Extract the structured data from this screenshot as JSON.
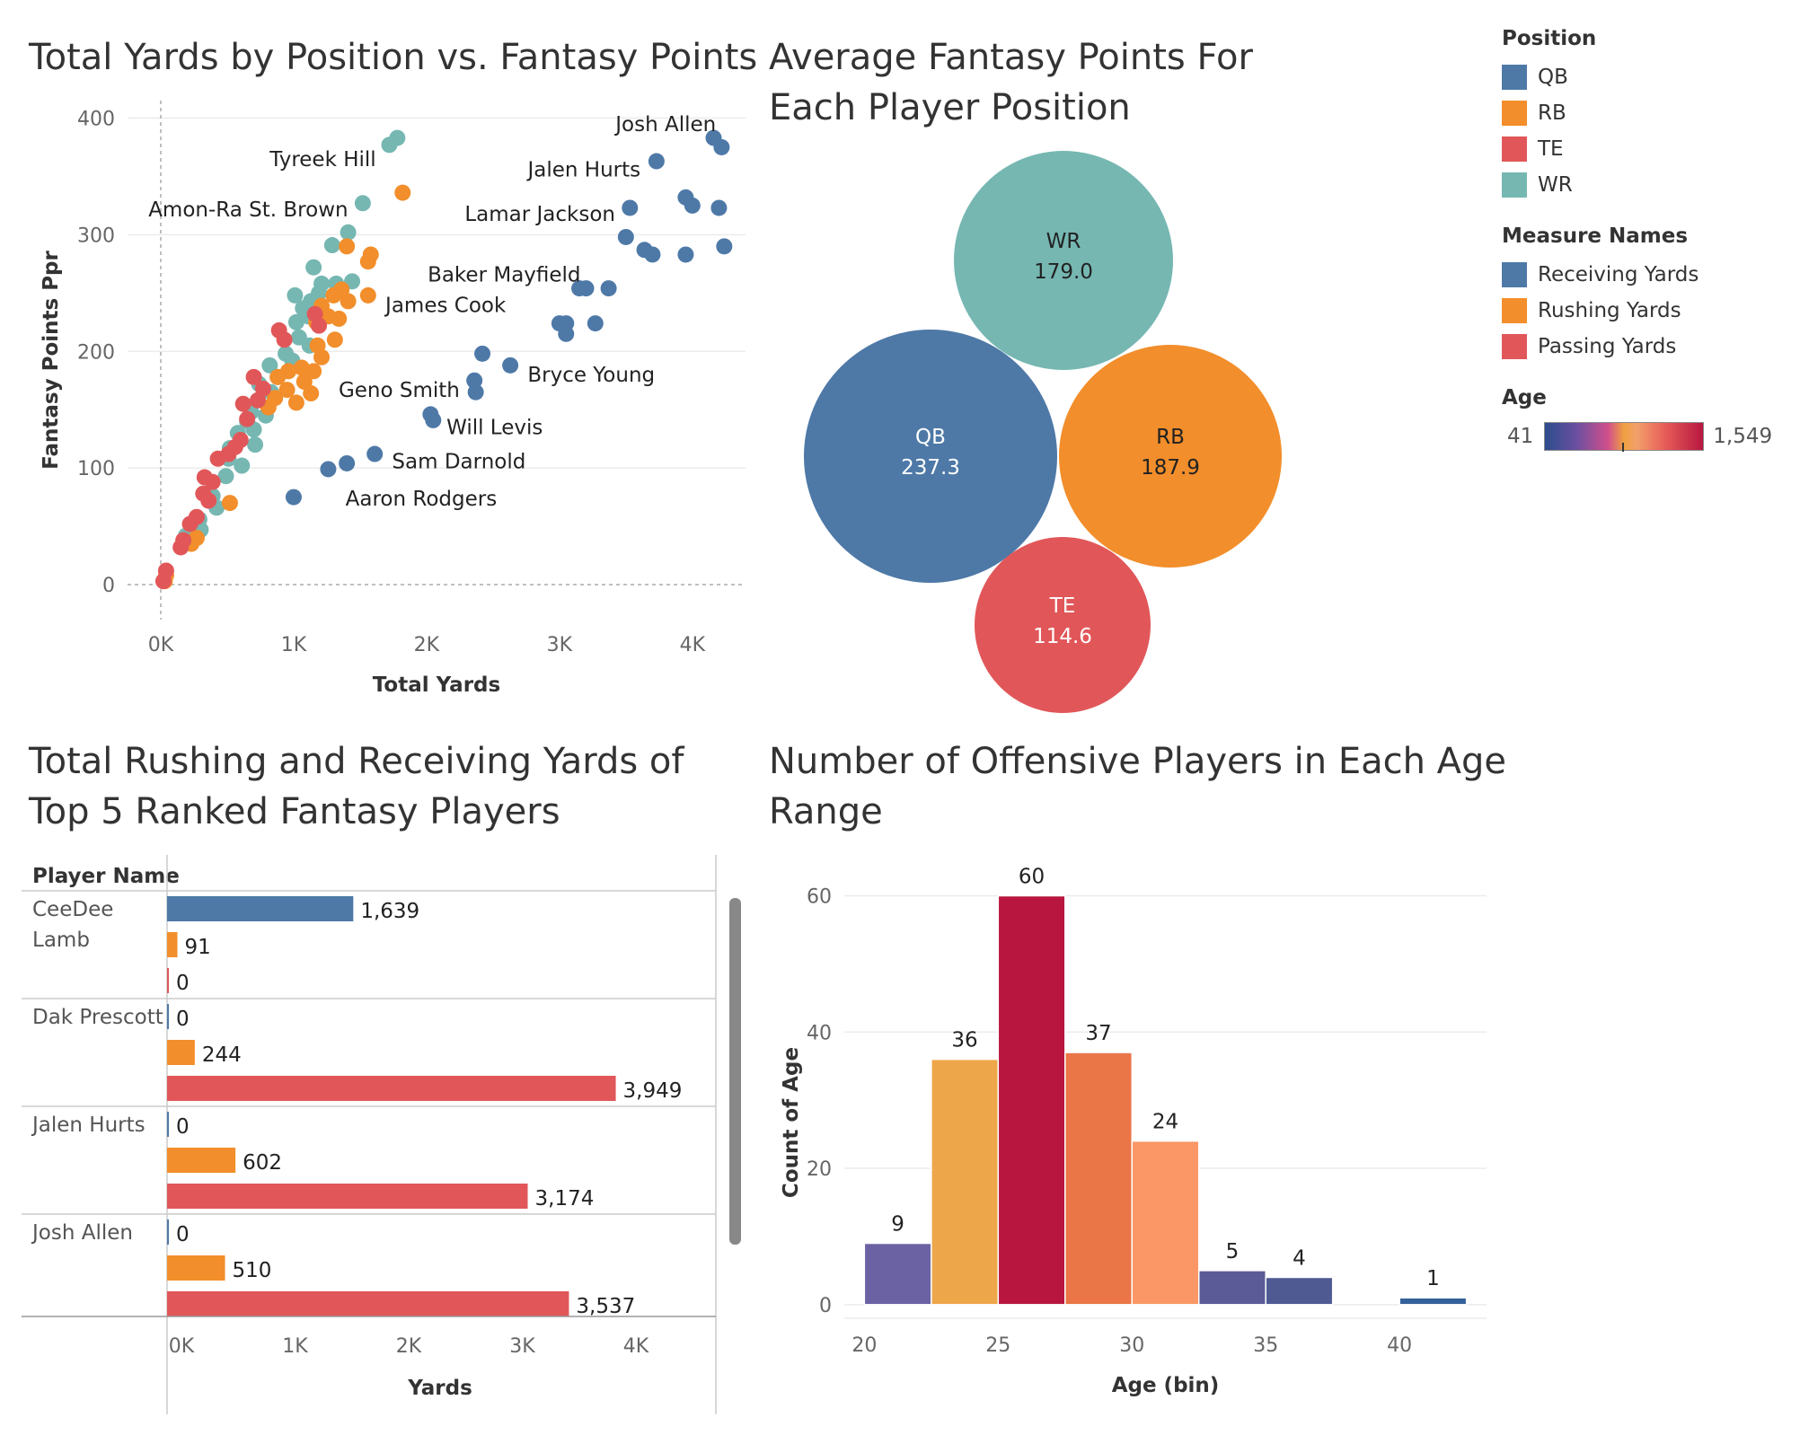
{
  "colors": {
    "qb": "#4e79a7",
    "rb": "#f28e2b",
    "te": "#e15759",
    "wr": "#76b7b2",
    "receiving": "#4e79a7",
    "rushing": "#f28e2b",
    "passing": "#e15759",
    "grid": "#ececec",
    "text": "#333333"
  },
  "legend": {
    "position_title": "Position",
    "positions": [
      {
        "label": "QB",
        "color": "#4e79a7"
      },
      {
        "label": "RB",
        "color": "#f28e2b"
      },
      {
        "label": "TE",
        "color": "#e15759"
      },
      {
        "label": "WR",
        "color": "#76b7b2"
      }
    ],
    "measure_title": "Measure Names",
    "measures": [
      {
        "label": "Receiving Yards",
        "color": "#4e79a7"
      },
      {
        "label": "Rushing Yards",
        "color": "#f28e2b"
      },
      {
        "label": "Passing Yards",
        "color": "#e15759"
      }
    ],
    "age_title": "Age",
    "age_min": "41",
    "age_max": "1,549"
  },
  "chart_data": [
    {
      "type": "scatter",
      "title": "Total Yards by Position vs. Fantasy Points",
      "xlabel": "Total Yards",
      "ylabel": "Fantasy Points Ppr",
      "xlim": [
        -250,
        4400
      ],
      "ylim": [
        -30,
        415
      ],
      "x_ticks": [
        {
          "v": 0,
          "label": "0K"
        },
        {
          "v": 1000,
          "label": "1K"
        },
        {
          "v": 2000,
          "label": "2K"
        },
        {
          "v": 3000,
          "label": "3K"
        },
        {
          "v": 4000,
          "label": "4K"
        }
      ],
      "y_ticks": [
        0,
        100,
        200,
        300,
        400
      ],
      "points": {
        "QB": [
          [
            4160,
            383
          ],
          [
            4220,
            375
          ],
          [
            3730,
            363
          ],
          [
            3950,
            332
          ],
          [
            4000,
            325
          ],
          [
            4200,
            323
          ],
          [
            3530,
            323
          ],
          [
            3500,
            298
          ],
          [
            3640,
            287
          ],
          [
            3700,
            283
          ],
          [
            3950,
            283
          ],
          [
            4240,
            290
          ],
          [
            3150,
            254
          ],
          [
            3200,
            254
          ],
          [
            3370,
            254
          ],
          [
            3000,
            224
          ],
          [
            3050,
            224
          ],
          [
            3270,
            224
          ],
          [
            3050,
            215
          ],
          [
            2420,
            198
          ],
          [
            2630,
            188
          ],
          [
            2360,
            175
          ],
          [
            2370,
            165
          ],
          [
            2030,
            146
          ],
          [
            2050,
            141
          ],
          [
            1610,
            112
          ],
          [
            1400,
            104
          ],
          [
            1260,
            99
          ],
          [
            1000,
            75
          ]
        ],
        "RB": [
          [
            1820,
            336
          ],
          [
            1580,
            283
          ],
          [
            1560,
            277
          ],
          [
            1400,
            290
          ],
          [
            1560,
            248
          ],
          [
            1360,
            253
          ],
          [
            1410,
            243
          ],
          [
            1300,
            248
          ],
          [
            1210,
            239
          ],
          [
            1340,
            228
          ],
          [
            1260,
            230
          ],
          [
            1170,
            225
          ],
          [
            1310,
            210
          ],
          [
            1180,
            205
          ],
          [
            1210,
            195
          ],
          [
            1060,
            186
          ],
          [
            1150,
            183
          ],
          [
            960,
            183
          ],
          [
            880,
            178
          ],
          [
            1080,
            174
          ],
          [
            950,
            167
          ],
          [
            1130,
            164
          ],
          [
            860,
            160
          ],
          [
            1020,
            156
          ],
          [
            810,
            152
          ],
          [
            520,
            70
          ],
          [
            270,
            40
          ],
          [
            230,
            35
          ],
          [
            40,
            8
          ],
          [
            30,
            3
          ]
        ],
        "TE": [
          [
            890,
            218
          ],
          [
            930,
            210
          ],
          [
            1160,
            232
          ],
          [
            1190,
            222
          ],
          [
            700,
            178
          ],
          [
            770,
            168
          ],
          [
            730,
            158
          ],
          [
            620,
            155
          ],
          [
            650,
            142
          ],
          [
            600,
            124
          ],
          [
            560,
            118
          ],
          [
            510,
            112
          ],
          [
            430,
            108
          ],
          [
            330,
            92
          ],
          [
            390,
            88
          ],
          [
            320,
            78
          ],
          [
            360,
            72
          ],
          [
            270,
            58
          ],
          [
            220,
            52
          ],
          [
            170,
            38
          ],
          [
            150,
            32
          ],
          [
            40,
            12
          ],
          [
            20,
            3
          ]
        ],
        "WR": [
          [
            1780,
            383
          ],
          [
            1720,
            377
          ],
          [
            1520,
            327
          ],
          [
            1410,
            302
          ],
          [
            1290,
            291
          ],
          [
            1150,
            272
          ],
          [
            1440,
            260
          ],
          [
            1320,
            258
          ],
          [
            1210,
            258
          ],
          [
            1010,
            248
          ],
          [
            1190,
            250
          ],
          [
            1130,
            243
          ],
          [
            1070,
            237
          ],
          [
            1110,
            230
          ],
          [
            1020,
            225
          ],
          [
            1040,
            212
          ],
          [
            1120,
            205
          ],
          [
            940,
            198
          ],
          [
            990,
            192
          ],
          [
            820,
            188
          ],
          [
            880,
            178
          ],
          [
            740,
            172
          ],
          [
            830,
            165
          ],
          [
            730,
            158
          ],
          [
            680,
            148
          ],
          [
            790,
            145
          ],
          [
            650,
            140
          ],
          [
            700,
            133
          ],
          [
            580,
            130
          ],
          [
            710,
            120
          ],
          [
            520,
            117
          ],
          [
            610,
            102
          ],
          [
            490,
            93
          ],
          [
            510,
            108
          ],
          [
            390,
            76
          ],
          [
            420,
            66
          ],
          [
            290,
            56
          ],
          [
            300,
            47
          ],
          [
            190,
            42
          ]
        ]
      },
      "annotations": [
        {
          "text": "Josh Allen",
          "x": 3800,
          "y": 395,
          "anchor": "middle"
        },
        {
          "text": "Tyreek Hill",
          "x": 1620,
          "y": 365,
          "anchor": "end"
        },
        {
          "text": "Jalen Hurts",
          "x": 3610,
          "y": 356,
          "anchor": "end"
        },
        {
          "text": "Amon-Ra St. Brown",
          "x": 1410,
          "y": 322,
          "anchor": "end"
        },
        {
          "text": "Lamar Jackson",
          "x": 3420,
          "y": 318,
          "anchor": "end"
        },
        {
          "text": "Baker Mayfield",
          "x": 3160,
          "y": 266,
          "anchor": "end"
        },
        {
          "text": "James Cook",
          "x": 1690,
          "y": 240,
          "anchor": "start"
        },
        {
          "text": "Bryce Young",
          "x": 2760,
          "y": 180,
          "anchor": "start"
        },
        {
          "text": "Geno Smith",
          "x": 2250,
          "y": 167,
          "anchor": "end"
        },
        {
          "text": "Will Levis",
          "x": 2150,
          "y": 135,
          "anchor": "start"
        },
        {
          "text": "Sam Darnold",
          "x": 1740,
          "y": 106,
          "anchor": "start"
        },
        {
          "text": "Aaron Rodgers",
          "x": 1390,
          "y": 74,
          "anchor": "start"
        }
      ]
    },
    {
      "type": "bubble",
      "title": "Average Fantasy Points For Each Player Position",
      "bubbles": [
        {
          "label": "WR",
          "value": "179.0",
          "color": "#76b7b2",
          "text_color": "#222222"
        },
        {
          "label": "QB",
          "value": "237.3",
          "color": "#4e79a7",
          "text_color": "#ffffff"
        },
        {
          "label": "RB",
          "value": "187.9",
          "color": "#f28e2b",
          "text_color": "#222222"
        },
        {
          "label": "TE",
          "value": "114.6",
          "color": "#e15759",
          "text_color": "#ffffff"
        }
      ]
    },
    {
      "type": "bar",
      "orientation": "horizontal",
      "title": "Total Rushing and Receiving Yards of Top 5 Ranked Fantasy Players",
      "row_header": "Player Name",
      "xlabel": "Yards",
      "xlim": [
        0,
        5000
      ],
      "x_ticks": [
        {
          "v": 0,
          "label": "0K"
        },
        {
          "v": 1000,
          "label": "1K"
        },
        {
          "v": 2000,
          "label": "2K"
        },
        {
          "v": 3000,
          "label": "3K"
        },
        {
          "v": 4000,
          "label": "4K"
        }
      ],
      "players": [
        {
          "name": [
            "CeeDee",
            "Lamb"
          ],
          "receiving": 1639,
          "rushing": 91,
          "passing": 0,
          "labels": [
            "1,639",
            "91",
            "0"
          ]
        },
        {
          "name": [
            "Dak Prescott"
          ],
          "receiving": 0,
          "rushing": 244,
          "passing": 3949,
          "labels": [
            "0",
            "244",
            "3,949"
          ]
        },
        {
          "name": [
            "Jalen Hurts"
          ],
          "receiving": 0,
          "rushing": 602,
          "passing": 3174,
          "labels": [
            "0",
            "602",
            "3,174"
          ]
        },
        {
          "name": [
            "Josh Allen"
          ],
          "receiving": 0,
          "rushing": 510,
          "passing": 3537,
          "labels": [
            "0",
            "510",
            "3,537"
          ]
        }
      ]
    },
    {
      "type": "bar",
      "title": "Number of Offensive Players in Each Age Range",
      "xlabel": "Age (bin)",
      "ylabel": "Count of Age",
      "xlim": [
        19.25,
        43.25
      ],
      "ylim": [
        -2,
        66
      ],
      "x_ticks": [
        20,
        25,
        30,
        35,
        40
      ],
      "y_ticks": [
        0,
        20,
        40,
        60
      ],
      "bins": [
        {
          "start": 20,
          "count": 9,
          "label": "9",
          "color": "#6b62a3"
        },
        {
          "start": 22.5,
          "count": 36,
          "label": "36",
          "color": "#eda64a"
        },
        {
          "start": 25,
          "count": 60,
          "label": "60",
          "color": "#b8163f"
        },
        {
          "start": 27.5,
          "count": 37,
          "label": "37",
          "color": "#ea7546"
        },
        {
          "start": 30,
          "count": 24,
          "label": "24",
          "color": "#fb9766"
        },
        {
          "start": 32.5,
          "count": 5,
          "label": "5",
          "color": "#5a5b97"
        },
        {
          "start": 35,
          "count": 4,
          "label": "4",
          "color": "#4f5a93"
        },
        {
          "start": 40,
          "count": 1,
          "label": "1",
          "color": "#35619a"
        }
      ],
      "bin_width": 2.5
    }
  ]
}
